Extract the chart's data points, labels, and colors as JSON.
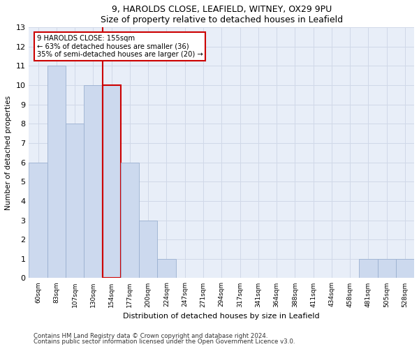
{
  "title1": "9, HAROLDS CLOSE, LEAFIELD, WITNEY, OX29 9PU",
  "title2": "Size of property relative to detached houses in Leafield",
  "xlabel": "Distribution of detached houses by size in Leafield",
  "ylabel": "Number of detached properties",
  "categories": [
    "60sqm",
    "83sqm",
    "107sqm",
    "130sqm",
    "154sqm",
    "177sqm",
    "200sqm",
    "224sqm",
    "247sqm",
    "271sqm",
    "294sqm",
    "317sqm",
    "341sqm",
    "364sqm",
    "388sqm",
    "411sqm",
    "434sqm",
    "458sqm",
    "481sqm",
    "505sqm",
    "528sqm"
  ],
  "values": [
    6,
    11,
    8,
    10,
    10,
    6,
    3,
    1,
    0,
    0,
    0,
    0,
    0,
    0,
    0,
    0,
    0,
    0,
    1,
    1,
    1
  ],
  "bar_color": "#ccd9ee",
  "bar_edge_color": "#9ab0d0",
  "highlight_index": 4,
  "highlight_line_color": "#cc0000",
  "ylim": [
    0,
    13
  ],
  "yticks": [
    0,
    1,
    2,
    3,
    4,
    5,
    6,
    7,
    8,
    9,
    10,
    11,
    12,
    13
  ],
  "annotation_text": "9 HAROLDS CLOSE: 155sqm\n← 63% of detached houses are smaller (36)\n35% of semi-detached houses are larger (20) →",
  "annotation_box_color": "#ffffff",
  "annotation_box_edge": "#cc0000",
  "footnote1": "Contains HM Land Registry data © Crown copyright and database right 2024.",
  "footnote2": "Contains public sector information licensed under the Open Government Licence v3.0.",
  "grid_color": "#d0d8e8",
  "background_color": "#e8eef8"
}
